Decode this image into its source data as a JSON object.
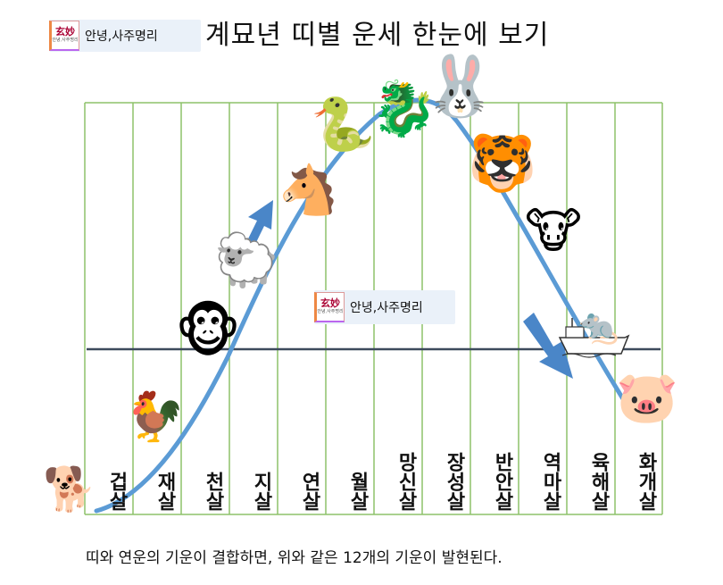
{
  "brand": {
    "logo_text": "玄妙",
    "logo_subtext": "안녕,사주명리",
    "text": "안녕,사주명리"
  },
  "title": "계묘년 띠별 운세 한눈에 보기",
  "caption": "띠와 연운의 기운이 결합하면, 위와 같은 12개의 기운이 발현된다.",
  "colors": {
    "grid": "#8dc26a",
    "curve": "#5b9bd5",
    "baseline": "#3d4a5c",
    "arrow": "#4a86c8"
  },
  "stages": [
    "겁살",
    "재살",
    "천살",
    "지살",
    "연살",
    "월살",
    "망신살",
    "장성살",
    "반안살",
    "역마살",
    "육해살",
    "화개살"
  ],
  "animals": [
    {
      "name": "dog",
      "emoji": "🐕"
    },
    {
      "name": "rooster",
      "emoji": "🐓"
    },
    {
      "name": "monkey",
      "emoji": "🐵"
    },
    {
      "name": "sheep",
      "emoji": "🐑"
    },
    {
      "name": "horse",
      "emoji": "🐴"
    },
    {
      "name": "snake",
      "emoji": "🐍"
    },
    {
      "name": "dragon",
      "emoji": "🐉"
    },
    {
      "name": "rabbit",
      "emoji": "🐰"
    },
    {
      "name": "tiger",
      "emoji": "🐯"
    },
    {
      "name": "ox",
      "emoji": "🐮"
    },
    {
      "name": "rat",
      "emoji": "🐀"
    },
    {
      "name": "pig",
      "emoji": "🐷"
    }
  ]
}
